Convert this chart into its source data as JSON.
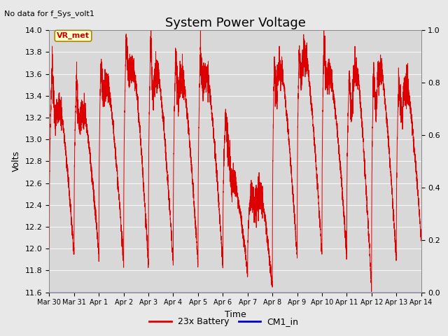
{
  "title": "System Power Voltage",
  "no_data_label": "No data for f_Sys_volt1",
  "ylabel": "Volts",
  "xlabel": "Time",
  "ylim_left": [
    11.6,
    14.0
  ],
  "ylim_right": [
    0.0,
    1.0
  ],
  "figure_bg": "#e8e8e8",
  "plot_bg": "#d8d8d8",
  "line_color_battery": "#dd0000",
  "line_color_cm1": "#0000cc",
  "legend_battery": "23x Battery",
  "legend_cm1": "CM1_in",
  "annotation_text": "VR_met",
  "x_tick_labels": [
    "Mar 30",
    "Mar 31",
    "Apr 1",
    "Apr 2",
    "Apr 3",
    "Apr 4",
    "Apr 5",
    "Apr 6",
    "Apr 7",
    "Apr 8",
    "Apr 9",
    "Apr 10",
    "Apr 11",
    "Apr 12",
    "Apr 13",
    "Apr 14"
  ],
  "x_tick_positions": [
    0,
    1,
    2,
    3,
    4,
    5,
    6,
    7,
    8,
    9,
    10,
    11,
    12,
    13,
    14,
    15
  ],
  "left_yticks": [
    11.6,
    11.8,
    12.0,
    12.2,
    12.4,
    12.6,
    12.8,
    13.0,
    13.2,
    13.4,
    13.6,
    13.8,
    14.0
  ],
  "right_yticks": [
    0.0,
    0.2,
    0.4,
    0.6,
    0.8,
    1.0
  ],
  "title_fontsize": 13,
  "label_fontsize": 9,
  "tick_fontsize": 8
}
